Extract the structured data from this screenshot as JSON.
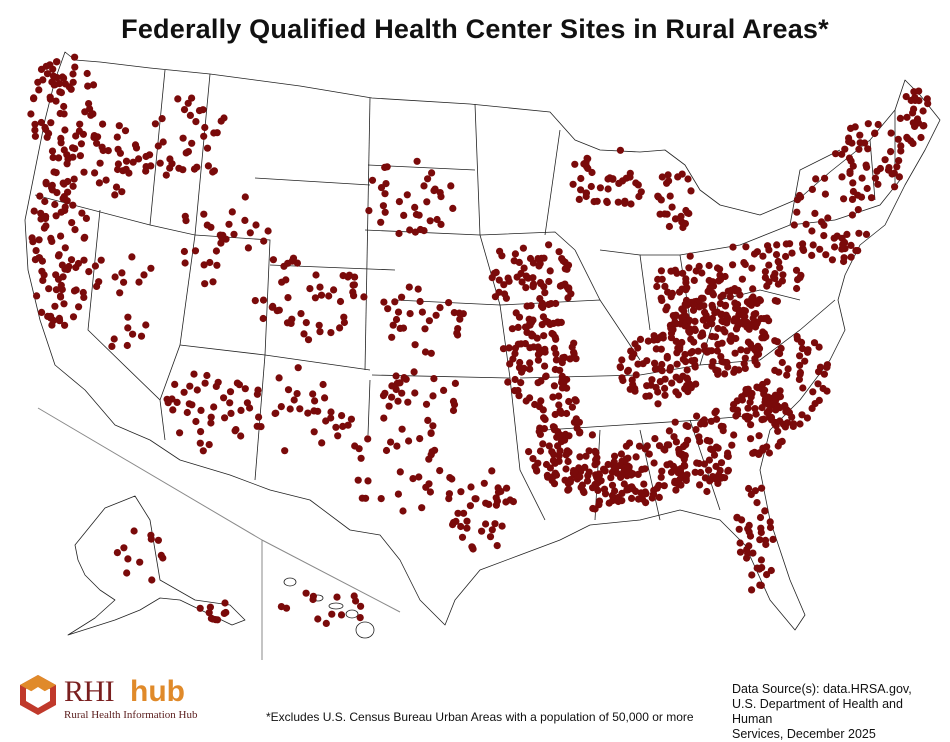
{
  "title": "Federally Qualified Health Center Sites in Rural Areas*",
  "colors": {
    "site": "#7a0a0a",
    "state_border": "#222222",
    "background": "#ffffff"
  },
  "logo": {
    "wordmark_left": "RHI",
    "wordmark_right": "hub",
    "subtitle": "Rural Health Information Hub",
    "icon": "hexagon-logo-icon"
  },
  "footnote": "*Excludes U.S. Census Bureau Urban Areas with a population of 50,000 or more",
  "source": {
    "line1": "Data Source(s): data.HRSA.gov,",
    "line2": "U.S. Department of Health and Human",
    "line3": "Services, December 2025"
  },
  "map": {
    "marker": "dot",
    "insets": [
      "Alaska",
      "Hawaii"
    ]
  }
}
